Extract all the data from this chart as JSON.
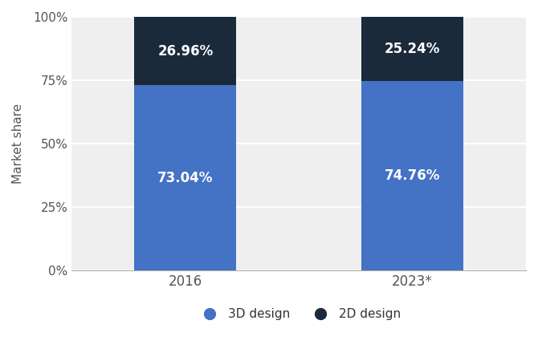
{
  "categories": [
    "2016",
    "2023*"
  ],
  "series_3d": [
    73.04,
    74.76
  ],
  "series_2d": [
    26.96,
    25.24
  ],
  "color_3d": "#4472C4",
  "color_2d": "#1B2A3B",
  "label_3d": "3D design",
  "label_2d": "2D design",
  "ylabel": "Market share",
  "yticks": [
    0,
    25,
    50,
    75,
    100
  ],
  "ytick_labels": [
    "0%",
    "25%",
    "50%",
    "75%",
    "100%"
  ],
  "label_color": "#ffffff",
  "label_fontsize": 12,
  "bar_width": 0.45,
  "background_color": "#ffffff",
  "plot_bg_color": "#efefef",
  "grid_color": "#ffffff",
  "title_fontsize": 16
}
